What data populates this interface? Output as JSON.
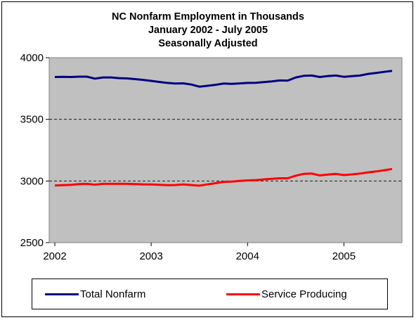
{
  "chart_data": {
    "type": "line",
    "title_lines": [
      "NC Nonfarm Employment in Thousands",
      "January 2002 - July 2005",
      "Seasonally Adjusted"
    ],
    "xlabel": "",
    "ylabel": "",
    "ylim": [
      2500,
      4000
    ],
    "yticks": [
      "4000",
      "3500",
      "3000",
      "2500"
    ],
    "xticks": [
      "2002",
      "2003",
      "2004",
      "2005"
    ],
    "x": [
      "2002-01",
      "2002-02",
      "2002-03",
      "2002-04",
      "2002-05",
      "2002-06",
      "2002-07",
      "2002-08",
      "2002-09",
      "2002-10",
      "2002-11",
      "2002-12",
      "2003-01",
      "2003-02",
      "2003-03",
      "2003-04",
      "2003-05",
      "2003-06",
      "2003-07",
      "2003-08",
      "2003-09",
      "2003-10",
      "2003-11",
      "2003-12",
      "2004-01",
      "2004-02",
      "2004-03",
      "2004-04",
      "2004-05",
      "2004-06",
      "2004-07",
      "2004-08",
      "2004-09",
      "2004-10",
      "2004-11",
      "2004-12",
      "2005-01",
      "2005-02",
      "2005-03",
      "2005-04",
      "2005-05",
      "2005-06",
      "2005-07"
    ],
    "grid": "dashed horizontal",
    "plot_background": "#c0c0c0",
    "legend_position": "bottom",
    "series": [
      {
        "name": "Total Nonfarm",
        "color": "#000080",
        "values": [
          3843,
          3845,
          3843,
          3846,
          3846,
          3830,
          3840,
          3840,
          3834,
          3832,
          3826,
          3820,
          3812,
          3803,
          3795,
          3790,
          3792,
          3782,
          3765,
          3772,
          3780,
          3790,
          3787,
          3791,
          3795,
          3796,
          3802,
          3808,
          3815,
          3814,
          3840,
          3853,
          3855,
          3843,
          3851,
          3855,
          3845,
          3850,
          3855,
          3868,
          3876,
          3885,
          3893
        ]
      },
      {
        "name": "Service Producing",
        "color": "#ff0000",
        "values": [
          2963,
          2966,
          2968,
          2975,
          2977,
          2970,
          2977,
          2977,
          2977,
          2977,
          2975,
          2973,
          2972,
          2969,
          2966,
          2967,
          2972,
          2967,
          2962,
          2972,
          2982,
          2993,
          2995,
          3000,
          3005,
          3007,
          3013,
          3018,
          3022,
          3022,
          3043,
          3058,
          3060,
          3045,
          3052,
          3057,
          3048,
          3053,
          3060,
          3070,
          3077,
          3087,
          3097
        ]
      }
    ]
  }
}
